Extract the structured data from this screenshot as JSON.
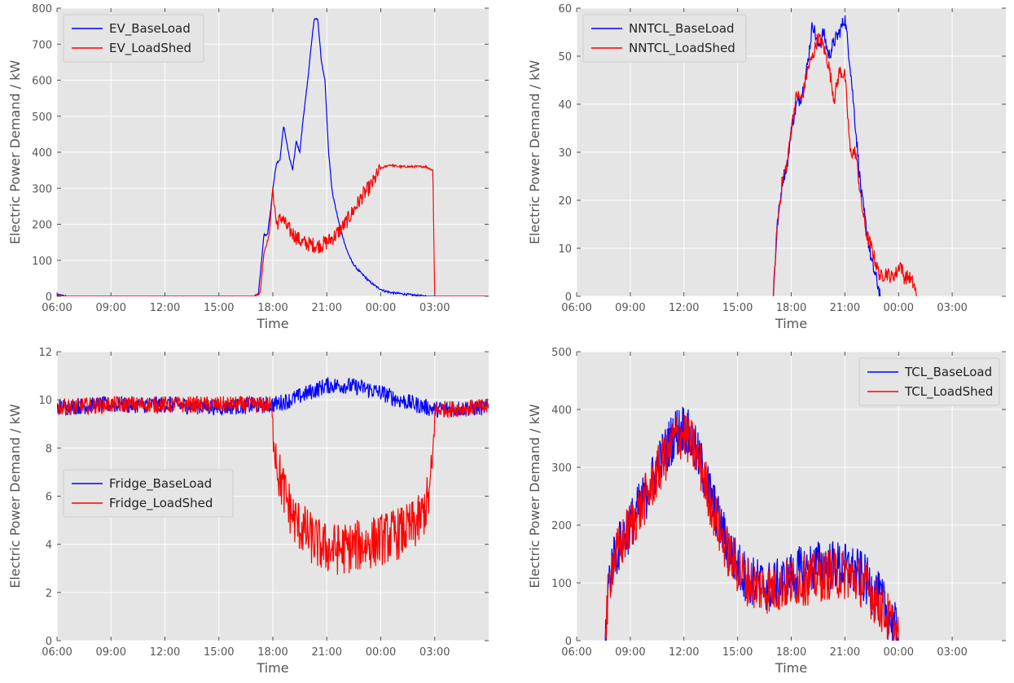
{
  "colors": {
    "baseload": "#0000ff",
    "loadshed": "#ff0000",
    "panel_bg": "#e5e5e5",
    "grid": "#ffffff"
  },
  "chart_data": [
    {
      "id": "ev",
      "type": "line",
      "xlabel": "Time",
      "ylabel": "Electric Power Demand / kW",
      "ylim": [
        0,
        800
      ],
      "yticks": [
        0,
        100,
        200,
        300,
        400,
        500,
        600,
        700,
        800
      ],
      "xlim": [
        6,
        30
      ],
      "xticks": [
        6,
        9,
        12,
        15,
        18,
        21,
        24,
        27
      ],
      "xtick_labels": [
        "06:00",
        "09:00",
        "12:00",
        "15:00",
        "18:00",
        "21:00",
        "00:00",
        "03:00"
      ],
      "legend_position": "top-left",
      "grid": true,
      "series": [
        {
          "name": "EV_BaseLoad",
          "color": "#0000ff",
          "x": [
            6.0,
            6.5,
            17.0,
            17.2,
            17.3,
            17.5,
            17.7,
            17.9,
            18.0,
            18.2,
            18.4,
            18.6,
            18.9,
            19.1,
            19.3,
            19.5,
            19.7,
            19.9,
            20.1,
            20.3,
            20.5,
            20.7,
            20.9,
            21.1,
            21.3,
            21.6,
            21.8,
            22.1,
            22.4,
            22.7,
            23.0,
            23.4,
            23.8,
            24.2,
            24.6,
            25.0,
            25.5,
            26.0,
            26.5,
            27.0,
            30.0
          ],
          "y": [
            4,
            0,
            0,
            8,
            60,
            170,
            170,
            250,
            300,
            370,
            380,
            475,
            390,
            350,
            430,
            400,
            500,
            580,
            680,
            770,
            770,
            650,
            600,
            400,
            290,
            220,
            180,
            130,
            95,
            75,
            60,
            40,
            25,
            15,
            10,
            8,
            5,
            2,
            0,
            0,
            0
          ]
        },
        {
          "name": "EV_LoadShed",
          "color": "#ff0000",
          "x": [
            6.0,
            6.5,
            17.0,
            17.3,
            17.5,
            17.8,
            18.0,
            18.2,
            18.5,
            18.8,
            19.2,
            19.6,
            20.0,
            20.5,
            21.0,
            21.5,
            22.0,
            22.5,
            23.0,
            23.5,
            24.0,
            24.5,
            25.0,
            25.5,
            26.0,
            26.5,
            26.9,
            27.0,
            30.0
          ],
          "y": [
            4,
            0,
            0,
            10,
            120,
            170,
            300,
            200,
            220,
            190,
            170,
            150,
            145,
            140,
            150,
            170,
            200,
            240,
            280,
            310,
            355,
            365,
            360,
            360,
            360,
            360,
            350,
            0,
            0
          ]
        }
      ]
    },
    {
      "id": "nntcl",
      "type": "line",
      "xlabel": "Time",
      "ylabel": "Electric Power Demand / kW",
      "ylim": [
        0,
        60
      ],
      "yticks": [
        0,
        10,
        20,
        30,
        40,
        50,
        60
      ],
      "xlim": [
        6,
        30
      ],
      "xticks": [
        6,
        9,
        12,
        15,
        18,
        21,
        24,
        27
      ],
      "xtick_labels": [
        "06:00",
        "09:00",
        "12:00",
        "15:00",
        "18:00",
        "21:00",
        "00:00",
        "03:00"
      ],
      "legend_position": "top-left",
      "grid": true,
      "series": [
        {
          "name": "NNTCL_BaseLoad",
          "color": "#0000ff",
          "x": [
            17.0,
            17.2,
            17.5,
            17.8,
            18.0,
            18.3,
            18.6,
            18.9,
            19.2,
            19.5,
            19.8,
            20.1,
            20.4,
            20.7,
            21.0,
            21.3,
            21.6,
            21.9,
            22.2,
            22.5,
            22.8,
            23.0
          ],
          "y": [
            0,
            14,
            24,
            28,
            35,
            40,
            42,
            48,
            57,
            52,
            55,
            50,
            53,
            55,
            58,
            48,
            35,
            22,
            14,
            7,
            3,
            0
          ]
        },
        {
          "name": "NNTCL_LoadShed",
          "color": "#ff0000",
          "x": [
            17.0,
            17.2,
            17.5,
            17.8,
            18.0,
            18.3,
            18.6,
            18.9,
            19.2,
            19.5,
            19.8,
            20.1,
            20.4,
            20.7,
            21.0,
            21.3,
            21.6,
            21.9,
            22.2,
            22.5,
            22.8,
            23.0,
            23.3,
            23.6,
            23.9,
            24.1,
            24.3,
            24.6,
            24.9,
            25.0
          ],
          "y": [
            0,
            14,
            24,
            28,
            35,
            42,
            41,
            47,
            50,
            54,
            52,
            48,
            41,
            47,
            46,
            30,
            30,
            20,
            13,
            10,
            6,
            4,
            5,
            4,
            5,
            7,
            4,
            4,
            2,
            0
          ]
        }
      ]
    },
    {
      "id": "fridge",
      "type": "line",
      "xlabel": "Time",
      "ylabel": "Electric Power Demand / kW",
      "ylim": [
        0,
        12
      ],
      "yticks": [
        0,
        2,
        4,
        6,
        8,
        10,
        12
      ],
      "xlim": [
        6,
        30
      ],
      "xticks": [
        6,
        9,
        12,
        15,
        18,
        21,
        24,
        27
      ],
      "xtick_labels": [
        "06:00",
        "09:00",
        "12:00",
        "15:00",
        "18:00",
        "21:00",
        "00:00",
        "03:00"
      ],
      "legend_position": "center-left",
      "grid": true,
      "series": [
        {
          "name": "Fridge_BaseLoad",
          "color": "#0000ff",
          "x": [
            6,
            9,
            12,
            15,
            18,
            19,
            20,
            21,
            22,
            23,
            24,
            25,
            26,
            27,
            30
          ],
          "y": [
            9.7,
            9.8,
            9.8,
            9.7,
            9.8,
            10.0,
            10.3,
            10.6,
            10.6,
            10.5,
            10.3,
            10.0,
            9.8,
            9.6,
            9.7
          ]
        },
        {
          "name": "Fridge_LoadShed",
          "color": "#ff0000",
          "x": [
            6,
            9,
            12,
            15,
            17.9,
            18.0,
            18.3,
            18.7,
            19.2,
            19.7,
            20.2,
            20.7,
            21.2,
            21.8,
            22.5,
            23.2,
            24.0,
            24.8,
            25.5,
            26.2,
            26.7,
            26.9,
            27.0,
            30
          ],
          "y": [
            9.7,
            9.8,
            9.8,
            9.8,
            9.8,
            9.0,
            7.0,
            6.0,
            5.0,
            4.6,
            4.2,
            3.9,
            3.8,
            3.8,
            3.9,
            4.0,
            4.2,
            4.4,
            4.6,
            5.0,
            6.0,
            7.5,
            9.6,
            9.7
          ]
        }
      ]
    },
    {
      "id": "tcl",
      "type": "line",
      "xlabel": "Time",
      "ylabel": "Electric Power Demand / kW",
      "ylim": [
        0,
        500
      ],
      "yticks": [
        0,
        100,
        200,
        300,
        400,
        500
      ],
      "xlim": [
        6,
        30
      ],
      "xticks": [
        6,
        9,
        12,
        15,
        18,
        21,
        24,
        27
      ],
      "xtick_labels": [
        "06:00",
        "09:00",
        "12:00",
        "15:00",
        "18:00",
        "21:00",
        "00:00",
        "03:00"
      ],
      "legend_position": "top-right",
      "grid": true,
      "series": [
        {
          "name": "TCL_BaseLoad",
          "color": "#0000ff",
          "x": [
            7.6,
            7.8,
            8.0,
            8.5,
            9.0,
            9.5,
            10.0,
            10.5,
            11.0,
            11.5,
            12.0,
            12.5,
            13.0,
            13.5,
            14.0,
            14.5,
            15.0,
            15.5,
            16.0,
            16.5,
            17.0,
            17.5,
            18.0,
            18.5,
            19.0,
            19.5,
            20.0,
            20.5,
            21.0,
            21.5,
            22.0,
            22.5,
            23.0,
            23.5,
            24.0
          ],
          "y": [
            0,
            100,
            140,
            170,
            200,
            230,
            260,
            300,
            330,
            360,
            370,
            340,
            300,
            250,
            200,
            160,
            130,
            110,
            100,
            95,
            95,
            100,
            110,
            120,
            125,
            130,
            130,
            130,
            125,
            120,
            110,
            90,
            70,
            40,
            10
          ]
        },
        {
          "name": "TCL_LoadShed",
          "color": "#ff0000",
          "x": [
            7.6,
            7.8,
            8.0,
            8.5,
            9.0,
            9.5,
            10.0,
            10.5,
            11.0,
            11.5,
            12.0,
            12.5,
            13.0,
            13.5,
            14.0,
            14.5,
            15.0,
            15.5,
            16.0,
            16.5,
            17.0,
            17.5,
            18.0,
            18.5,
            19.0,
            19.5,
            20.0,
            20.5,
            21.0,
            21.5,
            22.0,
            22.5,
            23.0,
            23.5,
            24.0
          ],
          "y": [
            0,
            95,
            135,
            165,
            200,
            225,
            255,
            290,
            320,
            350,
            360,
            335,
            295,
            240,
            190,
            150,
            125,
            105,
            95,
            90,
            90,
            95,
            100,
            105,
            105,
            110,
            115,
            115,
            115,
            110,
            100,
            80,
            60,
            35,
            5
          ]
        }
      ]
    }
  ]
}
